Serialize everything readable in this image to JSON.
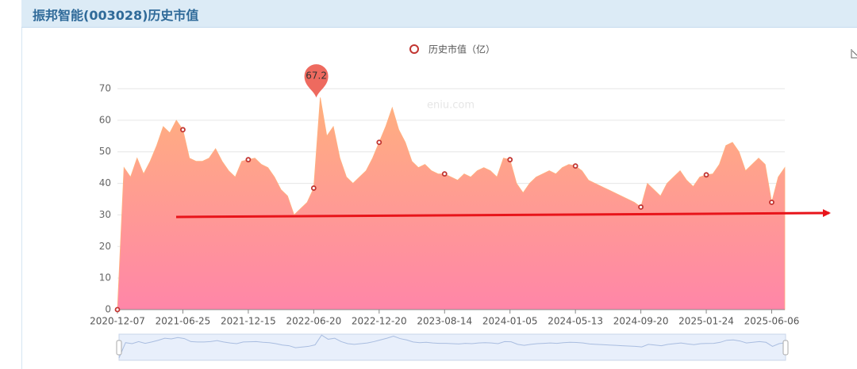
{
  "header": {
    "title": "振邦智能(003028)历史市值"
  },
  "chart_data": {
    "type": "area",
    "legend": "历史市值（亿）",
    "watermark": "eniu.com",
    "categories": [
      "2020-12-07",
      null,
      null,
      null,
      null,
      null,
      null,
      null,
      null,
      null,
      "2021-06-25",
      null,
      null,
      null,
      null,
      null,
      null,
      null,
      null,
      null,
      "2021-12-15",
      null,
      null,
      null,
      null,
      null,
      null,
      null,
      null,
      null,
      "2022-06-20",
      null,
      null,
      null,
      null,
      null,
      null,
      null,
      null,
      null,
      "2022-12-20",
      null,
      null,
      null,
      null,
      null,
      null,
      null,
      null,
      null,
      "2023-08-14",
      null,
      null,
      null,
      null,
      null,
      null,
      null,
      null,
      null,
      "2024-01-05",
      null,
      null,
      null,
      null,
      null,
      null,
      null,
      null,
      null,
      "2024-05-13",
      null,
      null,
      null,
      null,
      null,
      null,
      null,
      null,
      null,
      "2024-09-20",
      null,
      null,
      null,
      null,
      null,
      null,
      null,
      null,
      null,
      "2025-01-24",
      null,
      null,
      null,
      null,
      null,
      null,
      null,
      null,
      null,
      "2025-06-06",
      null,
      null
    ],
    "series": [
      {
        "name": "历史市值（亿）",
        "color": "#c23531",
        "values": [
          0,
          45,
          42,
          48,
          43,
          47,
          52,
          58,
          56,
          60,
          57,
          48,
          47,
          47,
          48,
          51,
          47,
          44,
          42,
          47,
          47.5,
          48,
          46,
          45,
          42,
          38,
          36,
          30,
          32,
          34,
          38.5,
          67.2,
          55,
          58,
          48,
          42,
          40,
          42,
          44,
          48,
          53,
          58,
          64,
          57,
          53,
          47,
          45,
          46,
          44,
          43,
          43,
          42,
          41,
          43,
          42,
          44,
          45,
          44,
          42,
          48,
          47.5,
          40,
          37,
          40,
          42,
          43,
          44,
          43,
          45,
          46,
          45.5,
          44,
          41,
          40,
          39,
          38,
          37,
          36,
          35,
          34,
          32.5,
          40,
          38,
          36,
          40,
          42,
          44,
          41,
          39,
          42,
          42.7,
          43,
          46,
          52,
          53,
          50,
          44,
          46,
          48,
          46,
          34,
          42,
          45
        ]
      }
    ],
    "area_colors": [
      "#ffb07e",
      "#ff86a8"
    ],
    "ylim": [
      0,
      70
    ],
    "yticks": [
      0,
      10,
      20,
      30,
      40,
      50,
      60,
      70
    ],
    "grid": true
  }
}
